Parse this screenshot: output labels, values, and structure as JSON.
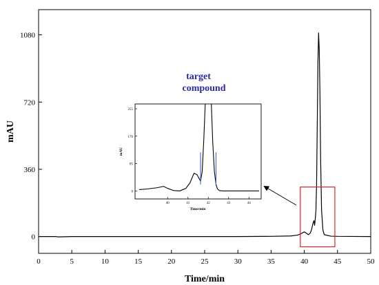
{
  "chart_data": [
    {
      "type": "line",
      "title": "",
      "xlabel": "Time/min",
      "ylabel": "mAU",
      "xlim": [
        0,
        50
      ],
      "ylim": [
        -90,
        1215
      ],
      "xticks": [
        0,
        5,
        10,
        15,
        20,
        25,
        30,
        35,
        40,
        45,
        50
      ],
      "yticks": [
        0,
        360,
        720,
        1080
      ],
      "series": [
        {
          "name": "",
          "color": "#000000",
          "x": [
            0,
            2.5,
            3,
            5,
            10,
            15,
            20,
            25,
            30,
            35,
            38,
            39,
            39.5,
            40,
            40.3,
            40.6,
            40.9,
            41.1,
            41.3,
            41.45,
            41.55,
            41.65,
            41.75,
            41.85,
            41.95,
            42.05,
            42.15,
            42.25,
            42.35,
            42.45,
            42.6,
            42.8,
            43,
            44,
            45,
            50
          ],
          "y": [
            0,
            0,
            -2,
            0,
            0,
            0,
            0,
            0,
            0,
            1,
            3,
            8,
            15,
            25,
            18,
            10,
            18,
            38,
            70,
            85,
            60,
            95,
            140,
            280,
            600,
            930,
            1090,
            1000,
            780,
            430,
            140,
            35,
            10,
            2,
            1,
            0
          ]
        }
      ],
      "highlight_box": {
        "x": [
          39.4,
          44.6
        ],
        "y": [
          -55,
          265
        ],
        "color": "#e02020"
      }
    },
    {
      "type": "line",
      "title": "",
      "xlabel": "Time/min",
      "ylabel": "mAU",
      "xlim": [
        38.4,
        44.6
      ],
      "ylim": [
        -25,
        270
      ],
      "xticks": [
        40,
        41,
        42,
        43,
        44
      ],
      "yticks": [
        0,
        85,
        170,
        255
      ],
      "annotation": "target\ncompound",
      "series": [
        {
          "name": "",
          "color": "#000000",
          "x": [
            38.6,
            39,
            39.5,
            39.8,
            40,
            40.3,
            40.6,
            40.9,
            41.1,
            41.3,
            41.45,
            41.55,
            41.62,
            41.7,
            41.78,
            41.85
          ],
          "y": [
            4,
            6,
            10,
            14,
            8,
            1,
            0,
            8,
            25,
            55,
            50,
            38,
            30,
            60,
            160,
            290
          ]
        },
        {
          "name": "",
          "color": "#000000",
          "x": [
            42.15,
            42.22,
            42.3,
            42.38,
            42.45,
            42.55,
            42.7,
            43,
            43.5,
            44,
            44.5
          ],
          "y": [
            290,
            150,
            60,
            20,
            6,
            1,
            0,
            0,
            0,
            0,
            0
          ]
        }
      ],
      "markers": [
        {
          "x": 41.62,
          "y_from": 20,
          "y_to": 120,
          "color": "#4a6fd6"
        },
        {
          "x": 42.38,
          "y_from": 20,
          "y_to": 120,
          "color": "#4a6fd6"
        }
      ]
    }
  ]
}
